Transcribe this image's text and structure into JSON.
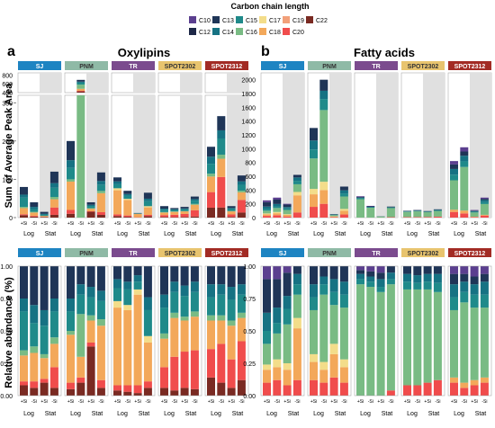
{
  "legend": {
    "title": "Carbon chain length",
    "items": [
      {
        "name": "C10",
        "color": "#5b3f8f"
      },
      {
        "name": "C13",
        "color": "#1f3557"
      },
      {
        "name": "C15",
        "color": "#1f8a8a"
      },
      {
        "name": "C17",
        "color": "#f3dd8a"
      },
      {
        "name": "C19",
        "color": "#f2a07a"
      },
      {
        "name": "C22",
        "color": "#7a2a22"
      },
      {
        "name": "C12",
        "color": "#1d2747"
      },
      {
        "name": "C14",
        "color": "#167283"
      },
      {
        "name": "C16",
        "color": "#79bb84"
      },
      {
        "name": "C18",
        "color": "#f3a85a"
      },
      {
        "name": "C20",
        "color": "#f04c4c"
      }
    ]
  },
  "strains": [
    {
      "name": "SJ",
      "color": "#1e84c2"
    },
    {
      "name": "PNM",
      "color": "#8fbaa6"
    },
    {
      "name": "TR",
      "color": "#7b4b8e"
    },
    {
      "name": "SPOT2302",
      "color": "#e8c46e"
    },
    {
      "name": "SPOT2312",
      "color": "#a22b24"
    }
  ],
  "bar_labels": [
    "+Si",
    "-Si",
    "+Si",
    "-Si"
  ],
  "phase_labels": [
    "Log",
    "Stat"
  ],
  "panels": [
    {
      "letter": "a",
      "title": "Oxylipins",
      "ylabel": "Sum of Average Peak Area"
    },
    {
      "letter": "b",
      "title": "Fatty acids",
      "ylabel": ""
    }
  ],
  "ylabel_bottom": "Relative abundance (%)",
  "chart_data": [
    {
      "type": "bar",
      "title": "Oxylipins",
      "ylabel": "Sum of Average Peak Area",
      "stacked": true,
      "broken_axis": true,
      "lower_ylim": [
        0,
        310
      ],
      "upper_ylim": [
        400,
        850
      ],
      "lower_ticks": [
        0,
        100,
        200,
        300
      ],
      "upper_ticks": [
        400,
        600,
        800
      ],
      "totals": {
        "SJ": [
          80,
          40,
          15,
          120
        ],
        "PNM": [
          200,
          690,
          40,
          118
        ],
        "TR": [
          105,
          70,
          12,
          65
        ],
        "SPOT2302": [
          30,
          25,
          28,
          55
        ],
        "SPOT2312": [
          185,
          265,
          30,
          110
        ]
      }
    },
    {
      "type": "bar",
      "title": "Fatty acids",
      "stacked": true,
      "ylim": [
        0,
        2100
      ],
      "ticks": [
        0,
        200,
        400,
        600,
        800,
        1000,
        1200,
        1400,
        1600,
        1800,
        2000
      ],
      "totals": {
        "SJ": [
          250,
          290,
          200,
          620
        ],
        "PNM": [
          1300,
          2000,
          50,
          450
        ],
        "TR": [
          310,
          170,
          20,
          160
        ],
        "SPOT2302": [
          100,
          110,
          95,
          120
        ],
        "SPOT2312": [
          820,
          1020,
          110,
          290
        ]
      }
    },
    {
      "type": "bar",
      "title": "",
      "ylabel": "Relative abundance (%)",
      "stacked": true,
      "ylim": [
        0,
        1
      ],
      "ticks": [
        0,
        0.25,
        0.5,
        0.75,
        1.0
      ]
    },
    {
      "type": "bar",
      "title": "",
      "stacked": true,
      "ylim": [
        0,
        1
      ],
      "ticks": [
        0,
        0.25,
        0.5,
        0.75,
        1.0
      ]
    }
  ]
}
